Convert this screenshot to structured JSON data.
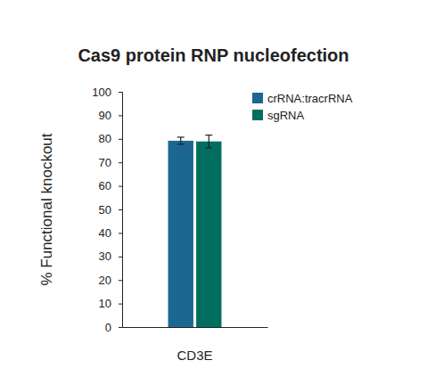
{
  "chart_data": {
    "type": "bar",
    "title": "Cas9 protein RNP nucleofection",
    "ylabel": "% Functional knockout",
    "categories": [
      "CD3E"
    ],
    "series": [
      {
        "name": "crRNA:tracrRNA",
        "color": "#1b6792",
        "values": [
          79.2
        ],
        "errors": [
          1.5
        ]
      },
      {
        "name": "sgRNA",
        "color": "#006e5e",
        "values": [
          78.9
        ],
        "errors": [
          2.7
        ]
      }
    ],
    "ylim": [
      0,
      100
    ],
    "yticks": [
      0,
      10,
      20,
      30,
      40,
      50,
      60,
      70,
      80,
      90,
      100
    ],
    "grid": false,
    "legend": "upper right"
  }
}
